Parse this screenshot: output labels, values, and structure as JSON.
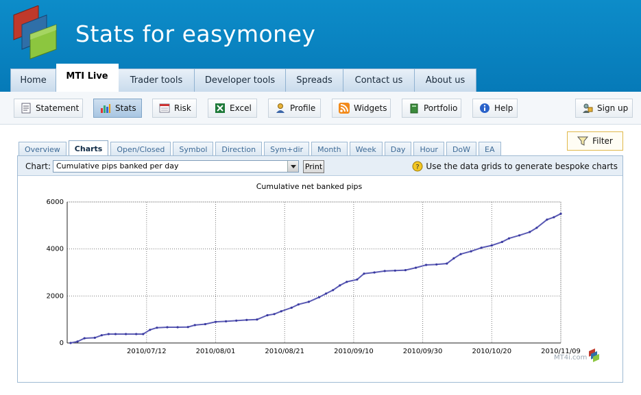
{
  "header": {
    "title": "Stats for easymoney",
    "main_tabs": [
      {
        "label": "Home"
      },
      {
        "label": "MTI Live",
        "active": true
      },
      {
        "label": "Trader tools"
      },
      {
        "label": "Developer tools"
      },
      {
        "label": "Spreads"
      },
      {
        "label": "Contact us"
      },
      {
        "label": "About us"
      }
    ]
  },
  "toolbar": {
    "buttons": [
      {
        "label": "Statement",
        "icon": "statement-icon"
      },
      {
        "label": "Stats",
        "icon": "stats-icon",
        "active": true
      },
      {
        "label": "Risk",
        "icon": "risk-icon"
      },
      {
        "label": "Excel",
        "icon": "excel-icon"
      },
      {
        "label": "Profile",
        "icon": "profile-icon"
      },
      {
        "label": "Widgets",
        "icon": "rss-icon"
      },
      {
        "label": "Portfolio",
        "icon": "portfolio-icon"
      },
      {
        "label": "Help",
        "icon": "info-icon"
      }
    ],
    "signup_label": "Sign up"
  },
  "filter_label": "Filter",
  "subtabs": [
    {
      "label": "Overview"
    },
    {
      "label": "Charts",
      "active": true
    },
    {
      "label": "Open/Closed"
    },
    {
      "label": "Symbol"
    },
    {
      "label": "Direction"
    },
    {
      "label": "Sym+dir"
    },
    {
      "label": "Month"
    },
    {
      "label": "Week"
    },
    {
      "label": "Day"
    },
    {
      "label": "Hour"
    },
    {
      "label": "DoW"
    },
    {
      "label": "EA"
    }
  ],
  "panel": {
    "chart_label": "Chart:",
    "chart_select_value": "Cumulative pips banked per day",
    "print_label": "Print",
    "hint": "Use the data grids to generate bespoke charts",
    "watermark": "MT4i.com"
  },
  "colors": {
    "header_bg": "#0a85c2",
    "line": "#5a5ab4",
    "marker": "#3a3aa0"
  },
  "chart_data": {
    "type": "line",
    "title": "Cumulative net banked pips",
    "xlabel": "",
    "ylabel": "",
    "x_ticks": [
      "2010/07/12",
      "2010/08/01",
      "2010/08/21",
      "2010/09/10",
      "2010/09/30",
      "2010/10/20",
      "2010/11/09"
    ],
    "y_ticks": [
      0,
      2000,
      4000,
      6000
    ],
    "xlim": [
      "2010/06/19",
      "2010/11/09"
    ],
    "ylim": [
      0,
      6000
    ],
    "grid": true,
    "series": [
      {
        "values": [
          [
            "2010/06/20",
            0
          ],
          [
            "2010/06/22",
            60
          ],
          [
            "2010/06/24",
            200
          ],
          [
            "2010/06/27",
            220
          ],
          [
            "2010/06/29",
            330
          ],
          [
            "2010/07/01",
            380
          ],
          [
            "2010/07/03",
            380
          ],
          [
            "2010/07/06",
            380
          ],
          [
            "2010/07/09",
            380
          ],
          [
            "2010/07/11",
            380
          ],
          [
            "2010/07/13",
            560
          ],
          [
            "2010/07/15",
            650
          ],
          [
            "2010/07/18",
            670
          ],
          [
            "2010/07/21",
            670
          ],
          [
            "2010/07/24",
            680
          ],
          [
            "2010/07/26",
            760
          ],
          [
            "2010/07/29",
            800
          ],
          [
            "2010/08/01",
            900
          ],
          [
            "2010/08/04",
            920
          ],
          [
            "2010/08/07",
            950
          ],
          [
            "2010/08/10",
            980
          ],
          [
            "2010/08/13",
            1000
          ],
          [
            "2010/08/16",
            1180
          ],
          [
            "2010/08/18",
            1230
          ],
          [
            "2010/08/20",
            1350
          ],
          [
            "2010/08/23",
            1500
          ],
          [
            "2010/08/25",
            1640
          ],
          [
            "2010/08/28",
            1750
          ],
          [
            "2010/08/31",
            1950
          ],
          [
            "2010/09/02",
            2100
          ],
          [
            "2010/09/04",
            2250
          ],
          [
            "2010/09/06",
            2450
          ],
          [
            "2010/09/08",
            2600
          ],
          [
            "2010/09/11",
            2700
          ],
          [
            "2010/09/13",
            2950
          ],
          [
            "2010/09/16",
            3000
          ],
          [
            "2010/09/19",
            3060
          ],
          [
            "2010/09/22",
            3080
          ],
          [
            "2010/09/25",
            3100
          ],
          [
            "2010/09/28",
            3200
          ],
          [
            "2010/10/01",
            3320
          ],
          [
            "2010/10/04",
            3340
          ],
          [
            "2010/10/07",
            3380
          ],
          [
            "2010/10/09",
            3600
          ],
          [
            "2010/10/11",
            3780
          ],
          [
            "2010/10/14",
            3900
          ],
          [
            "2010/10/17",
            4050
          ],
          [
            "2010/10/20",
            4150
          ],
          [
            "2010/10/23",
            4300
          ],
          [
            "2010/10/25",
            4450
          ],
          [
            "2010/10/28",
            4580
          ],
          [
            "2010/10/31",
            4720
          ],
          [
            "2010/11/02",
            4900
          ],
          [
            "2010/11/05",
            5250
          ],
          [
            "2010/11/07",
            5350
          ],
          [
            "2010/11/09",
            5500
          ]
        ]
      }
    ]
  }
}
